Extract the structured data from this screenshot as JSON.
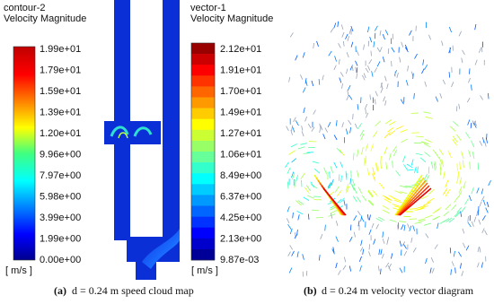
{
  "left_panel": {
    "name": "contour-2",
    "quantity": "Velocity Magnitude",
    "levels": [
      "1.99e+01",
      "1.79e+01",
      "1.59e+01",
      "1.39e+01",
      "1.20e+01",
      "9.96e+00",
      "7.97e+00",
      "5.98e+00",
      "3.99e+00",
      "1.99e+00",
      "0.00e+00"
    ],
    "unit": "[ m/s ]",
    "caption_label": "(a)",
    "caption": "d = 0.24 m speed cloud map"
  },
  "right_panel": {
    "name": "vector-1",
    "quantity": "Velocity Magnitude",
    "levels": [
      "2.12e+01",
      "1.91e+01",
      "1.70e+01",
      "1.49e+01",
      "1.27e+01",
      "1.06e+01",
      "8.49e+00",
      "6.37e+00",
      "4.25e+00",
      "2.13e+00",
      "9.87e-03"
    ],
    "unit": "[ m/s ]",
    "caption_label": "(b)",
    "caption": "d = 0.24 m velocity vector diagram"
  }
}
